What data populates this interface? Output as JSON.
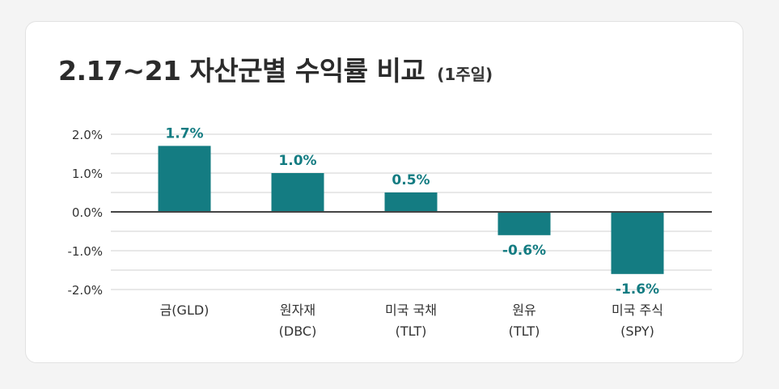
{
  "header": {
    "title": "2.17~21 자산군별 수익률 비교",
    "subtitle": "(1주일)"
  },
  "colors": {
    "bar": "#147c82",
    "label": "#147c82",
    "grid": "#d0d0d0",
    "zero_line": "#444444"
  },
  "chart_data": {
    "type": "bar",
    "title": "2.17~21 자산군별 수익률 비교 (1주일)",
    "xlabel": "",
    "ylabel": "",
    "categories": [
      [
        "금(GLD)"
      ],
      [
        "원자재",
        "(DBC)"
      ],
      [
        "미국 국채",
        "(TLT)"
      ],
      [
        "원유",
        "(TLT)"
      ],
      [
        "미국 주식",
        "(SPY)"
      ]
    ],
    "values": [
      1.7,
      1.0,
      0.5,
      -0.6,
      -1.6
    ],
    "data_labels": [
      "1.7%",
      "1.0%",
      "0.5%",
      "-0.6%",
      "-1.6%"
    ],
    "y_ticks": [
      2.0,
      1.0,
      0.0,
      -1.0,
      -2.0
    ],
    "y_tick_labels": [
      "2.0%",
      "1.0%",
      "0.0%",
      "-1.0%",
      "-2.0%"
    ],
    "ylim": [
      -2.0,
      2.0
    ],
    "grid": true,
    "legend": "none"
  }
}
